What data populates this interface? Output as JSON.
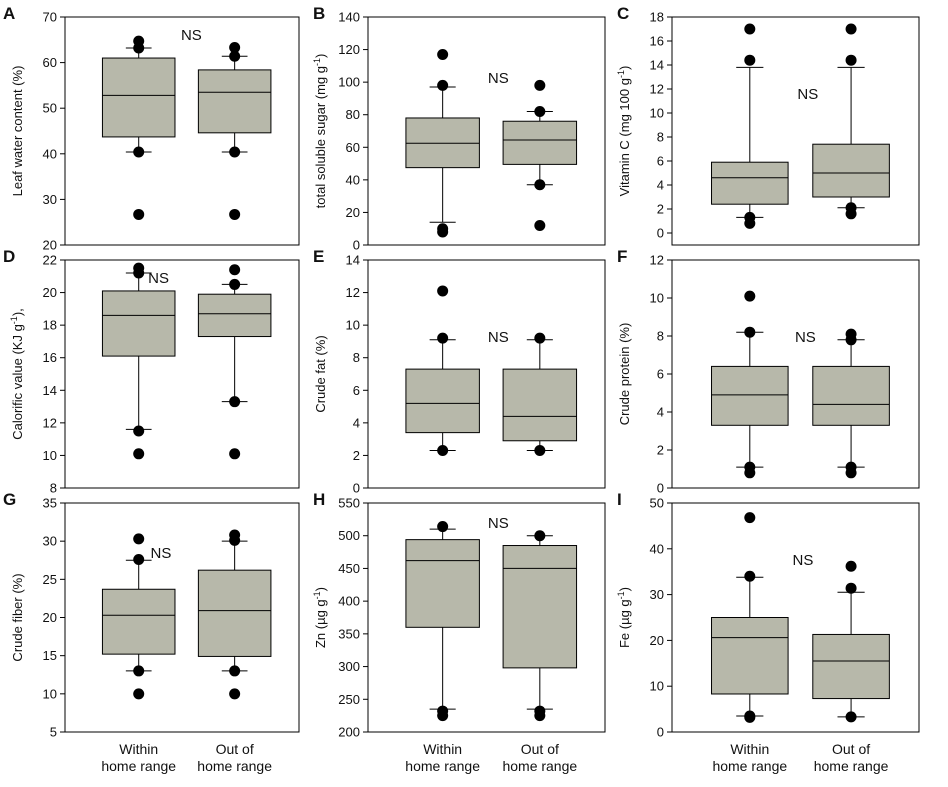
{
  "figure": {
    "categories": [
      "Within\nhome range",
      "Out of\nhome range"
    ],
    "bottom_row_panels": [
      "G",
      "H",
      "I"
    ]
  },
  "chart_data": [
    {
      "id": "A",
      "type": "box",
      "panel_label": "A",
      "annotation": "NS",
      "ylabel": "Leaf water content (%)",
      "ylim": [
        20,
        70
      ],
      "yticks": [
        20,
        30,
        40,
        50,
        60,
        70
      ],
      "boxes": [
        {
          "category": "Within home range",
          "q1": 43.7,
          "median": 52.8,
          "q3": 61.0,
          "whisker_low": 40.4,
          "whisker_high": 63.2,
          "outliers": [
            26.7,
            40.4,
            63.2,
            64.7
          ]
        },
        {
          "category": "Out of home range",
          "q1": 44.6,
          "median": 53.5,
          "q3": 58.4,
          "whisker_low": 40.4,
          "whisker_high": 61.4,
          "outliers": [
            26.7,
            40.4,
            61.4,
            63.3
          ]
        }
      ]
    },
    {
      "id": "B",
      "type": "box",
      "panel_label": "B",
      "annotation": "NS",
      "ylabel": "total soluble sugar (mg g-1)",
      "ylabel_text": "total soluble sugar (mg g",
      "ylabel_sup": "-1",
      "ylabel_end": ")",
      "ylim": [
        0,
        140
      ],
      "yticks": [
        0,
        20,
        40,
        60,
        80,
        100,
        120,
        140
      ],
      "boxes": [
        {
          "category": "Within home range",
          "q1": 47.5,
          "median": 62.5,
          "q3": 78.0,
          "whisker_low": 14.0,
          "whisker_high": 97.0,
          "outliers": [
            8.0,
            10.0,
            98.0,
            117.0
          ]
        },
        {
          "category": "Out of home range",
          "q1": 49.5,
          "median": 64.5,
          "q3": 76.0,
          "whisker_low": 37.0,
          "whisker_high": 82.0,
          "outliers": [
            12.0,
            37.0,
            82.0,
            98.0
          ]
        }
      ]
    },
    {
      "id": "C",
      "type": "box",
      "panel_label": "C",
      "annotation": "NS",
      "ylabel": "Vitamin C (mg 100 g-1)",
      "ylabel_text": "Vitamin C (mg 100 g",
      "ylabel_sup": "-1",
      "ylabel_end": ")",
      "ylim": [
        -1,
        18
      ],
      "yticks": [
        0,
        2,
        4,
        6,
        8,
        10,
        12,
        14,
        16,
        18
      ],
      "boxes": [
        {
          "category": "Within home range",
          "q1": 2.4,
          "median": 4.6,
          "q3": 5.9,
          "whisker_low": 1.3,
          "whisker_high": 13.8,
          "outliers": [
            0.8,
            1.3,
            14.4,
            17.0
          ]
        },
        {
          "category": "Out of home range",
          "q1": 3.0,
          "median": 5.0,
          "q3": 7.4,
          "whisker_low": 2.1,
          "whisker_high": 13.8,
          "outliers": [
            1.6,
            2.1,
            14.4,
            17.0
          ]
        }
      ]
    },
    {
      "id": "D",
      "type": "box",
      "panel_label": "D",
      "annotation": "NS",
      "ylabel": "Calorific value (KJ g-1),",
      "ylabel_text": "Calorific value (KJ g",
      "ylabel_sup": "-1",
      "ylabel_end": "),",
      "ylim": [
        8,
        22
      ],
      "yticks": [
        8,
        10,
        12,
        14,
        16,
        18,
        20,
        22
      ],
      "boxes": [
        {
          "category": "Within home range",
          "q1": 16.1,
          "median": 18.6,
          "q3": 20.1,
          "whisker_low": 11.6,
          "whisker_high": 21.2,
          "outliers": [
            10.1,
            11.5,
            21.2,
            21.5
          ]
        },
        {
          "category": "Out of home range",
          "q1": 17.3,
          "median": 18.7,
          "q3": 19.9,
          "whisker_low": 13.3,
          "whisker_high": 20.5,
          "outliers": [
            10.1,
            13.3,
            20.5,
            21.4
          ]
        }
      ]
    },
    {
      "id": "E",
      "type": "box",
      "panel_label": "E",
      "annotation": "NS",
      "ylabel": "Crude fat (%)",
      "ylim": [
        0,
        14
      ],
      "yticks": [
        0,
        2,
        4,
        6,
        8,
        10,
        12,
        14
      ],
      "boxes": [
        {
          "category": "Within home range",
          "q1": 3.4,
          "median": 5.2,
          "q3": 7.3,
          "whisker_low": 2.3,
          "whisker_high": 9.1,
          "outliers": [
            2.3,
            9.2,
            12.1
          ]
        },
        {
          "category": "Out of home range",
          "q1": 2.9,
          "median": 4.4,
          "q3": 7.3,
          "whisker_low": 2.3,
          "whisker_high": 9.1,
          "outliers": [
            2.3,
            9.2
          ]
        }
      ]
    },
    {
      "id": "F",
      "type": "box",
      "panel_label": "F",
      "annotation": "NS",
      "ylabel": "Crude protein (%)",
      "ylim": [
        0,
        12
      ],
      "yticks": [
        0,
        2,
        4,
        6,
        8,
        10,
        12
      ],
      "boxes": [
        {
          "category": "Within home range",
          "q1": 3.3,
          "median": 4.9,
          "q3": 6.4,
          "whisker_low": 1.1,
          "whisker_high": 8.2,
          "outliers": [
            0.8,
            1.1,
            8.2,
            10.1
          ]
        },
        {
          "category": "Out of home range",
          "q1": 3.3,
          "median": 4.4,
          "q3": 6.4,
          "whisker_low": 1.1,
          "whisker_high": 7.8,
          "outliers": [
            0.8,
            1.1,
            7.8,
            8.1
          ]
        }
      ]
    },
    {
      "id": "G",
      "type": "box",
      "panel_label": "G",
      "annotation": "NS",
      "ylabel": "Crude fiber (%)",
      "ylim": [
        5,
        35
      ],
      "yticks": [
        5,
        10,
        15,
        20,
        25,
        30,
        35
      ],
      "boxes": [
        {
          "category": "Within home range",
          "q1": 15.2,
          "median": 20.3,
          "q3": 23.7,
          "whisker_low": 13.0,
          "whisker_high": 27.5,
          "outliers": [
            10.0,
            13.0,
            27.6,
            30.3
          ]
        },
        {
          "category": "Out of home range",
          "q1": 14.9,
          "median": 20.9,
          "q3": 26.2,
          "whisker_low": 13.0,
          "whisker_high": 30.0,
          "outliers": [
            10.0,
            13.0,
            30.1,
            30.8
          ]
        }
      ]
    },
    {
      "id": "H",
      "type": "box",
      "panel_label": "H",
      "annotation": "NS",
      "ylabel": "Zn (µg g-1)",
      "ylabel_text": "Zn (µg g",
      "ylabel_sup": "-1",
      "ylabel_end": ")",
      "ylim": [
        200,
        550
      ],
      "yticks": [
        200,
        250,
        300,
        350,
        400,
        450,
        500,
        550
      ],
      "boxes": [
        {
          "category": "Within home range",
          "q1": 360,
          "median": 462,
          "q3": 494,
          "whisker_low": 235,
          "whisker_high": 510,
          "outliers": [
            225,
            232,
            514
          ]
        },
        {
          "category": "Out of home range",
          "q1": 298,
          "median": 450,
          "q3": 485,
          "whisker_low": 235,
          "whisker_high": 500,
          "outliers": [
            225,
            232,
            500
          ]
        }
      ]
    },
    {
      "id": "I",
      "type": "box",
      "panel_label": "I",
      "annotation": "NS",
      "ylabel": "Fe (µg g-1)",
      "ylabel_text": "Fe (µg g",
      "ylabel_sup": "-1",
      "ylabel_end": ")",
      "ylim": [
        0,
        50
      ],
      "yticks": [
        0,
        10,
        20,
        30,
        40,
        50
      ],
      "boxes": [
        {
          "category": "Within home range",
          "q1": 8.3,
          "median": 20.6,
          "q3": 25.0,
          "whisker_low": 3.5,
          "whisker_high": 33.8,
          "outliers": [
            3.2,
            3.5,
            34.0,
            46.8
          ]
        },
        {
          "category": "Out of home range",
          "q1": 7.3,
          "median": 15.5,
          "q3": 21.3,
          "whisker_low": 3.3,
          "whisker_high": 30.5,
          "outliers": [
            3.3,
            31.4,
            36.2
          ]
        }
      ]
    }
  ]
}
